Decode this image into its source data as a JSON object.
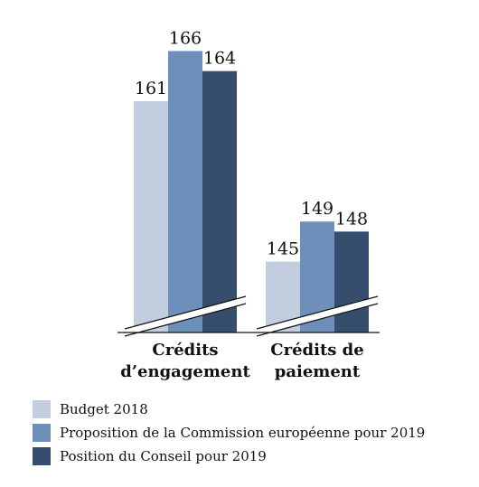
{
  "chart_data": {
    "type": "bar",
    "categories": [
      [
        "Crédits",
        "d’engagement"
      ],
      [
        "Crédits de",
        "paiement"
      ]
    ],
    "series": [
      {
        "name": "Budget 2018",
        "values": [
          161,
          145
        ],
        "color": "#c2cde0"
      },
      {
        "name": "Proposition de la Commission européenne pour 2019",
        "values": [
          166,
          149
        ],
        "color": "#6f8fbb"
      },
      {
        "name": "Position du Conseil pour 2019",
        "values": [
          164,
          148
        ],
        "color": "#364d6e"
      }
    ],
    "axis_break": true,
    "legend_position": "bottom-left"
  }
}
